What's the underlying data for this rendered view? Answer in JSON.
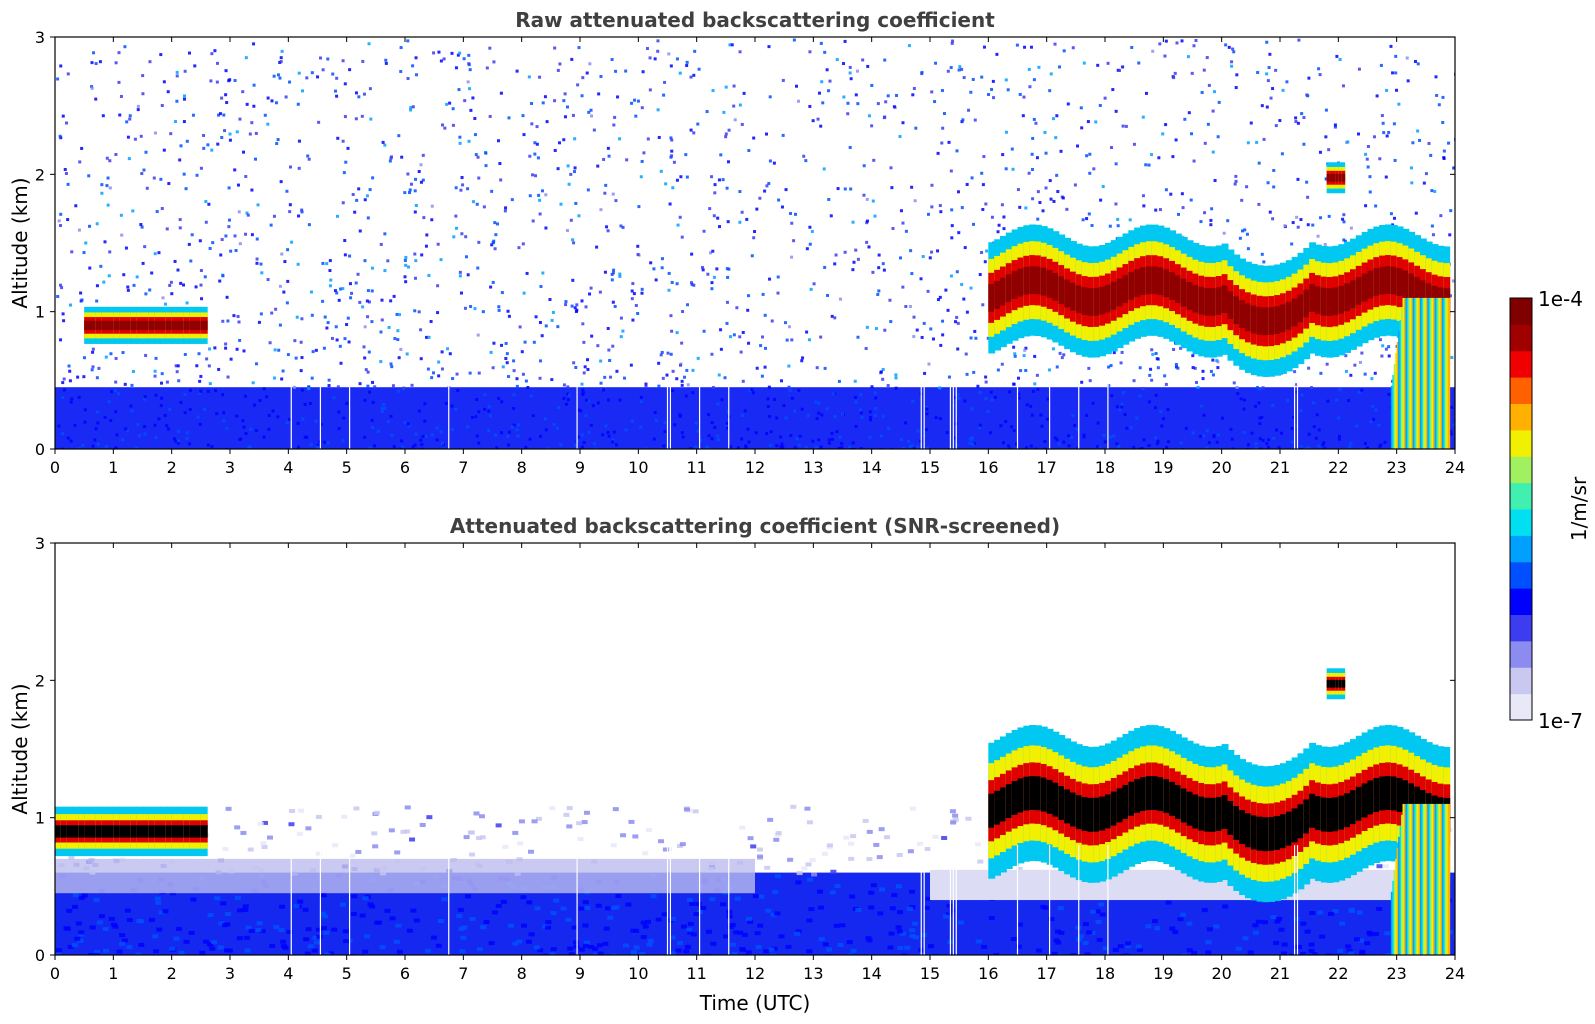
{
  "chart_data": [
    {
      "type": "heatmap",
      "title": "Raw attenuated backscattering coefficient",
      "xlabel": "",
      "ylabel": "Altitude (km)",
      "xlim": [
        0,
        24
      ],
      "ylim": [
        0,
        3
      ],
      "xticks": [
        "0",
        "1",
        "2",
        "3",
        "4",
        "5",
        "6",
        "7",
        "8",
        "9",
        "10",
        "11",
        "12",
        "13",
        "14",
        "15",
        "16",
        "17",
        "18",
        "19",
        "20",
        "21",
        "22",
        "23",
        "24"
      ],
      "yticks": [
        "0",
        "1",
        "2",
        "3"
      ],
      "colorscale": "jet",
      "cloud_layers": [
        {
          "t_start": 0.5,
          "t_end": 2.6,
          "base_km": 0.75,
          "top_km": 1.05
        },
        {
          "t_start": 16.0,
          "t_end": 23.9,
          "base_km": 0.7,
          "top_km": 1.6
        },
        {
          "t_start": 21.8,
          "t_end": 22.1,
          "base_km": 1.85,
          "top_km": 2.1
        }
      ],
      "boundary_layer_top_km": 0.45
    },
    {
      "type": "heatmap",
      "title": "Attenuated backscattering coefficient (SNR-screened)",
      "xlabel": "Time (UTC)",
      "ylabel": "Altitude (km)",
      "xlim": [
        0,
        24
      ],
      "ylim": [
        0,
        3
      ],
      "xticks": [
        "0",
        "1",
        "2",
        "3",
        "4",
        "5",
        "6",
        "7",
        "8",
        "9",
        "10",
        "11",
        "12",
        "13",
        "14",
        "15",
        "16",
        "17",
        "18",
        "19",
        "20",
        "21",
        "22",
        "23",
        "24"
      ],
      "yticks": [
        "0",
        "1",
        "2",
        "3"
      ],
      "colorscale": "jet",
      "cloud_layers": [
        {
          "t_start": 0.0,
          "t_end": 2.6,
          "base_km": 0.7,
          "top_km": 1.1
        },
        {
          "t_start": 16.0,
          "t_end": 23.9,
          "base_km": 0.55,
          "top_km": 1.65
        },
        {
          "t_start": 21.8,
          "t_end": 22.1,
          "base_km": 1.85,
          "top_km": 2.1
        }
      ],
      "boundary_layer_top_km": 0.6
    }
  ],
  "colorbar": {
    "label": "1/m/sr",
    "max_label": "1e-4",
    "min_label": "1e-7",
    "colors": [
      "#e8e8f8",
      "#c8c8f0",
      "#8c8cf0",
      "#3c3cf0",
      "#0000ff",
      "#0050ff",
      "#00a0ff",
      "#00e0f0",
      "#40f0b0",
      "#a0f060",
      "#f0f000",
      "#ffb000",
      "#ff6000",
      "#f00000",
      "#a00000",
      "#800000"
    ]
  }
}
